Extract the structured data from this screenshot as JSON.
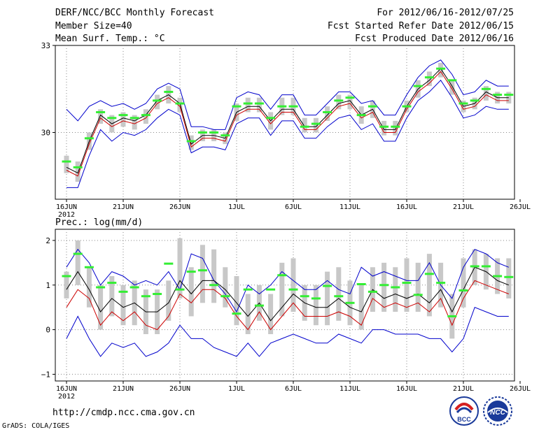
{
  "header": {
    "line1_left": "DERF/NCC/BCC Monthly Forecast",
    "line2_left": "Member Size=40",
    "line3_left": "Mean Surf. Temp.: °C",
    "line1_right": "For 2012/06/16-2012/07/25",
    "line2_right": "Fcst Started Refer Date 2012/06/15",
    "line3_right": "Fcst Produced Date 2012/06/16"
  },
  "footer": {
    "url": "http://cmdp.ncc.cma.gov.cn",
    "credit": "GrADS: COLA/IGES",
    "logo_left_text": "BCC",
    "logo_right_text": "NCC"
  },
  "colors": {
    "ensemble_range": "#0000cc",
    "ensemble_mean": "#000000",
    "median": "#cc0000",
    "observed_marker": "#33ee33",
    "spread_box": "#c8c8c8",
    "grid": "#888888"
  },
  "chart_data": [
    {
      "type": "line",
      "title": "Mean Surf. Temp.: °C",
      "x_tick_labels": [
        "16JUN",
        "21JUN",
        "26JUN",
        "1JUL",
        "6JUL",
        "11JUL",
        "16JUL",
        "21JUL",
        "26JUL"
      ],
      "x_year_label": "2012",
      "x_tick_days": [
        0,
        5,
        10,
        15,
        20,
        25,
        30,
        35,
        40
      ],
      "y_ticks": [
        30,
        33
      ],
      "y_tick_labels": [
        "30",
        "33"
      ],
      "ylim": [
        27.7,
        33
      ],
      "x_days": [
        0,
        1,
        2,
        3,
        4,
        5,
        6,
        7,
        8,
        9,
        10,
        11,
        12,
        13,
        14,
        15,
        16,
        17,
        18,
        19,
        20,
        21,
        22,
        23,
        24,
        25,
        26,
        27,
        28,
        29,
        30,
        31,
        32,
        33,
        34,
        35,
        36,
        37,
        38,
        39
      ],
      "series": [
        {
          "name": "ensemble_max",
          "values": [
            30.8,
            30.4,
            30.9,
            31.1,
            30.9,
            31.0,
            30.8,
            31.0,
            31.5,
            31.7,
            31.5,
            30.2,
            30.2,
            30.1,
            30.1,
            31.2,
            31.4,
            31.3,
            30.8,
            31.3,
            31.3,
            30.6,
            30.6,
            31.0,
            31.4,
            31.4,
            31.0,
            31.1,
            30.6,
            30.6,
            31.3,
            31.9,
            32.3,
            32.5,
            32.0,
            31.3,
            31.4,
            31.8,
            31.6,
            31.6
          ]
        },
        {
          "name": "ensemble_mean",
          "values": [
            28.8,
            28.6,
            29.7,
            30.6,
            30.3,
            30.5,
            30.4,
            30.6,
            31.1,
            31.3,
            31.0,
            29.6,
            29.9,
            29.9,
            29.8,
            30.7,
            30.9,
            30.9,
            30.4,
            30.8,
            30.8,
            30.2,
            30.2,
            30.6,
            31.0,
            31.1,
            30.6,
            30.8,
            30.1,
            30.1,
            30.9,
            31.5,
            31.8,
            32.2,
            31.6,
            30.9,
            31.0,
            31.4,
            31.2,
            31.2
          ]
        },
        {
          "name": "median",
          "values": [
            28.7,
            28.5,
            29.6,
            30.5,
            30.2,
            30.4,
            30.3,
            30.5,
            31.0,
            31.2,
            30.9,
            29.5,
            29.8,
            29.8,
            29.7,
            30.6,
            30.8,
            30.8,
            30.3,
            30.7,
            30.7,
            30.1,
            30.1,
            30.5,
            30.9,
            31.0,
            30.5,
            30.7,
            30.0,
            30.0,
            30.8,
            31.4,
            31.7,
            32.1,
            31.5,
            30.8,
            30.9,
            31.3,
            31.1,
            31.1
          ]
        },
        {
          "name": "ensemble_min",
          "values": [
            28.1,
            28.1,
            29.2,
            30.1,
            29.7,
            30.0,
            29.9,
            30.1,
            30.5,
            30.8,
            30.6,
            29.3,
            29.5,
            29.5,
            29.4,
            30.3,
            30.5,
            30.5,
            29.9,
            30.4,
            30.4,
            29.8,
            29.8,
            30.2,
            30.5,
            30.6,
            30.1,
            30.3,
            29.7,
            29.7,
            30.5,
            31.1,
            31.4,
            31.8,
            31.2,
            30.5,
            30.6,
            30.9,
            30.8,
            30.8
          ]
        },
        {
          "name": "observed",
          "values": [
            29.0,
            28.8,
            29.8,
            30.7,
            30.5,
            30.6,
            30.5,
            30.6,
            31.1,
            31.4,
            31.0,
            29.7,
            30.0,
            30.0,
            29.9,
            30.9,
            31.0,
            31.0,
            30.5,
            30.9,
            30.9,
            30.2,
            30.3,
            30.7,
            31.1,
            31.2,
            30.6,
            30.9,
            30.2,
            30.2,
            30.9,
            31.6,
            31.9,
            32.2,
            31.8,
            31.0,
            31.1,
            31.5,
            31.3,
            31.3
          ]
        }
      ],
      "spread_boxes": {
        "low": [
          28.6,
          28.3,
          29.4,
          30.3,
          30.0,
          30.2,
          30.1,
          30.3,
          30.8,
          31.0,
          30.7,
          29.4,
          29.7,
          29.7,
          29.6,
          30.4,
          30.7,
          30.7,
          30.1,
          30.6,
          30.6,
          30.0,
          30.0,
          30.4,
          30.8,
          30.8,
          30.3,
          30.5,
          29.9,
          29.9,
          30.7,
          31.2,
          31.6,
          31.9,
          31.3,
          30.7,
          30.8,
          31.1,
          31.0,
          31.0
        ],
        "high": [
          29.2,
          29.0,
          30.0,
          30.8,
          30.6,
          30.7,
          30.6,
          30.8,
          31.3,
          31.6,
          31.2,
          29.9,
          30.1,
          30.1,
          30.0,
          31.0,
          31.2,
          31.2,
          30.7,
          31.2,
          31.2,
          30.5,
          30.5,
          30.9,
          31.3,
          31.3,
          30.9,
          31.1,
          30.4,
          30.4,
          31.1,
          31.8,
          32.1,
          32.4,
          31.8,
          31.1,
          31.2,
          31.6,
          31.4,
          31.4
        ]
      }
    },
    {
      "type": "line",
      "title": "Prec.: log(mm/d)",
      "x_tick_labels": [
        "16JUN",
        "21JUN",
        "26JUN",
        "1JUL",
        "6JUL",
        "11JUL",
        "16JUL",
        "21JUL",
        "26JUL"
      ],
      "x_year_label": "2012",
      "x_tick_days": [
        0,
        5,
        10,
        15,
        20,
        25,
        30,
        35,
        40
      ],
      "y_ticks": [
        -1,
        0,
        1,
        2
      ],
      "y_tick_labels": [
        "−1",
        "0",
        "1",
        "2"
      ],
      "ylim": [
        -1.15,
        2.25
      ],
      "x_days": [
        0,
        1,
        2,
        3,
        4,
        5,
        6,
        7,
        8,
        9,
        10,
        11,
        12,
        13,
        14,
        15,
        16,
        17,
        18,
        19,
        20,
        21,
        22,
        23,
        24,
        25,
        26,
        27,
        28,
        29,
        30,
        31,
        32,
        33,
        34,
        35,
        36,
        37,
        38,
        39
      ],
      "series": [
        {
          "name": "ensemble_max",
          "values": [
            1.4,
            1.8,
            1.5,
            1.0,
            1.3,
            1.2,
            1.0,
            1.1,
            1.0,
            1.3,
            0.9,
            1.7,
            1.6,
            1.1,
            0.8,
            0.4,
            1.0,
            0.8,
            1.0,
            1.3,
            1.1,
            0.9,
            0.9,
            1.1,
            0.9,
            0.8,
            1.4,
            1.2,
            1.3,
            1.2,
            1.1,
            1.1,
            1.5,
            1.0,
            0.7,
            1.4,
            1.8,
            1.7,
            1.5,
            1.4
          ]
        },
        {
          "name": "ensemble_mean",
          "values": [
            0.9,
            1.3,
            0.9,
            0.4,
            0.7,
            0.5,
            0.6,
            0.4,
            0.4,
            0.6,
            1.1,
            0.8,
            1.1,
            1.1,
            0.9,
            0.6,
            0.3,
            0.6,
            0.2,
            0.5,
            0.8,
            0.6,
            0.5,
            0.5,
            0.7,
            0.5,
            0.4,
            0.9,
            0.7,
            0.8,
            0.7,
            0.8,
            0.6,
            0.9,
            0.4,
            0.9,
            1.4,
            1.3,
            1.1,
            1.0
          ]
        },
        {
          "name": "median",
          "values": [
            0.5,
            0.9,
            0.7,
            0.1,
            0.4,
            0.2,
            0.4,
            0.1,
            0.0,
            0.3,
            0.8,
            0.6,
            0.9,
            0.9,
            0.7,
            0.3,
            0.0,
            0.4,
            0.0,
            0.3,
            0.6,
            0.3,
            0.3,
            0.3,
            0.4,
            0.3,
            0.1,
            0.7,
            0.5,
            0.6,
            0.5,
            0.6,
            0.4,
            0.7,
            0.1,
            0.7,
            1.1,
            1.0,
            0.9,
            0.8
          ]
        },
        {
          "name": "ensemble_min",
          "values": [
            -0.2,
            0.3,
            -0.2,
            -0.6,
            -0.3,
            -0.4,
            -0.3,
            -0.6,
            -0.5,
            -0.3,
            0.1,
            -0.2,
            -0.2,
            -0.4,
            -0.5,
            -0.6,
            -0.3,
            -0.6,
            -0.3,
            -0.2,
            -0.1,
            -0.2,
            -0.3,
            -0.3,
            -0.1,
            -0.2,
            -0.3,
            0.0,
            0.0,
            -0.1,
            -0.1,
            -0.1,
            -0.2,
            -0.2,
            -0.5,
            -0.2,
            0.5,
            0.4,
            0.3,
            0.3
          ]
        },
        {
          "name": "observed",
          "values": [
            1.2,
            1.7,
            1.4,
            0.95,
            1.05,
            0.85,
            0.95,
            0.75,
            0.8,
            1.48,
            0.9,
            1.3,
            1.33,
            1.0,
            0.75,
            0.36,
            0.9,
            0.54,
            0.9,
            1.22,
            0.9,
            0.75,
            0.7,
            0.98,
            0.75,
            0.6,
            1.02,
            0.85,
            1.0,
            0.95,
            1.05,
            0.78,
            1.25,
            1.05,
            0.3,
            0.88,
            1.42,
            1.42,
            1.2,
            1.18
          ]
        }
      ],
      "spread_boxes": {
        "low": [
          0.7,
          1.0,
          0.5,
          0.0,
          0.3,
          0.1,
          0.1,
          -0.1,
          -0.1,
          0.2,
          0.7,
          0.3,
          0.6,
          0.6,
          0.5,
          0.1,
          -0.1,
          0.2,
          -0.1,
          0.3,
          0.4,
          0.2,
          0.1,
          0.1,
          0.2,
          0.1,
          0.0,
          0.4,
          0.4,
          0.4,
          0.4,
          0.4,
          0.3,
          0.5,
          -0.2,
          0.5,
          1.0,
          0.9,
          0.8,
          0.7
        ],
        "high": [
          1.3,
          2.0,
          1.4,
          1.0,
          1.2,
          1.0,
          1.1,
          0.9,
          0.9,
          1.1,
          2.05,
          1.4,
          1.9,
          1.8,
          1.4,
          1.2,
          0.8,
          1.0,
          0.8,
          1.5,
          1.6,
          1.0,
          1.0,
          1.3,
          1.4,
          1.1,
          1.0,
          1.4,
          1.5,
          1.4,
          1.6,
          1.5,
          1.7,
          1.5,
          0.8,
          1.6,
          1.8,
          1.7,
          1.6,
          1.6
        ]
      }
    }
  ]
}
